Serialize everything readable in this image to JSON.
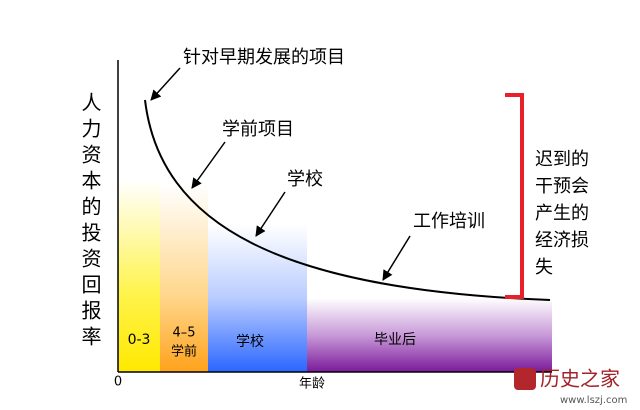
{
  "axes": {
    "y_label": "人力资本的投资回报率",
    "origin": "0",
    "x_label": "年龄"
  },
  "annotations": [
    "针对早期发展的项目",
    "学前项目",
    "学校",
    "工作培训"
  ],
  "regions": [
    {
      "label": [
        "0-3"
      ]
    },
    {
      "label": [
        "4–5",
        "学前"
      ]
    },
    {
      "label": [
        "学校"
      ]
    },
    {
      "label": [
        "毕业后"
      ]
    }
  ],
  "note": [
    "迟到的",
    "干预会",
    "产生的",
    "经济损",
    "失"
  ],
  "watermark": {
    "name": "历史之家",
    "url": "www.lszj.com"
  }
}
